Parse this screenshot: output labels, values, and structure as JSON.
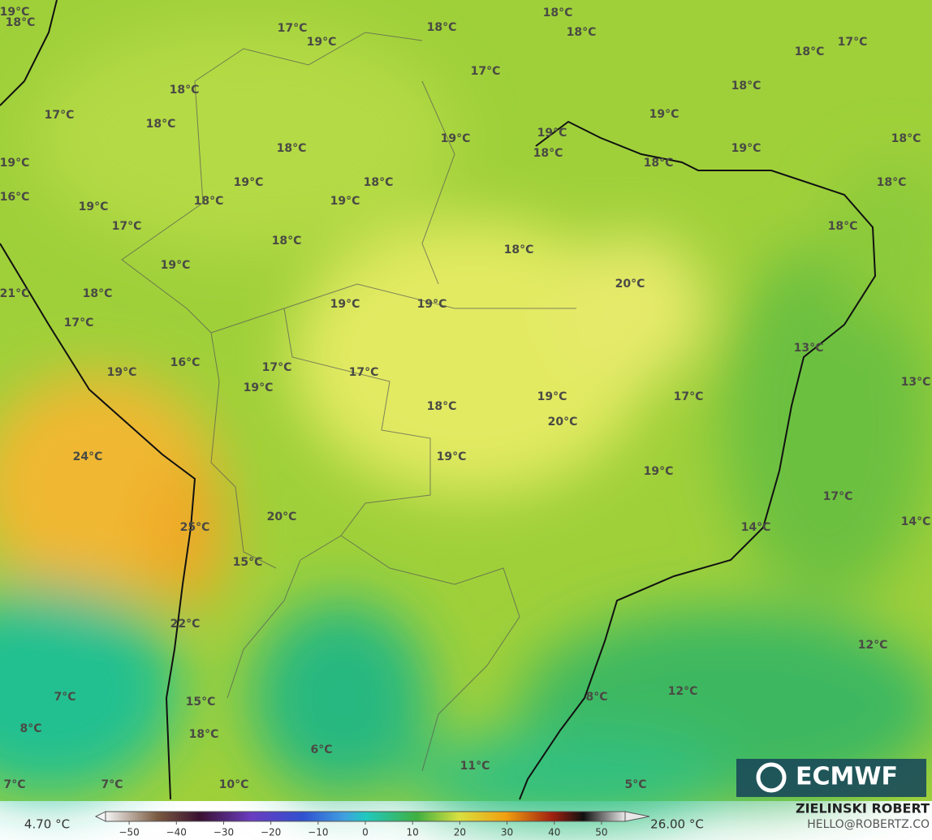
{
  "map": {
    "labels": [
      "19°C",
      "18°C",
      "17°C",
      "19°C",
      "18°C",
      "18°C",
      "18°C",
      "17°C",
      "18°C",
      "17°C",
      "18°C",
      "18°C",
      "17°C",
      "18°C",
      "19°C",
      "19°C",
      "19°C",
      "18°C",
      "18°C",
      "18°C",
      "19°C",
      "19°C",
      "18°C",
      "19°C",
      "18°C",
      "18°C",
      "16°C",
      "18°C",
      "19°C",
      "19°C",
      "17°C",
      "18°C",
      "18°C",
      "18°C",
      "19°C",
      "20°C",
      "21°C",
      "18°C",
      "19°C",
      "19°C",
      "17°C",
      "13°C",
      "16°C",
      "19°C",
      "17°C",
      "17°C",
      "13°C",
      "19°C",
      "17°C",
      "19°C",
      "18°C",
      "20°C",
      "24°C",
      "19°C",
      "19°C",
      "17°C",
      "20°C",
      "14°C",
      "25°C",
      "14°C",
      "15°C",
      "22°C",
      "12°C",
      "8°C",
      "12°C",
      "7°C",
      "8°C",
      "15°C",
      "18°C",
      "6°C",
      "11°C",
      "7°C",
      "7°C",
      "10°C",
      "5°C"
    ],
    "colorbar": {
      "min_label": "4.70 °C",
      "max_label": "26.00 °C",
      "range": [
        -55,
        55
      ],
      "ticks": [
        {
          "value": -50,
          "label": "−50"
        },
        {
          "value": -40,
          "label": "−40"
        },
        {
          "value": -30,
          "label": "−30"
        },
        {
          "value": -20,
          "label": "−20"
        },
        {
          "value": -10,
          "label": "−10"
        },
        0,
        10,
        20,
        30,
        40,
        50
      ]
    },
    "logo": "ECMWF",
    "author": "ZIELINSKI ROBERT",
    "contact": "HELLO@ROBERTZ.CO"
  }
}
